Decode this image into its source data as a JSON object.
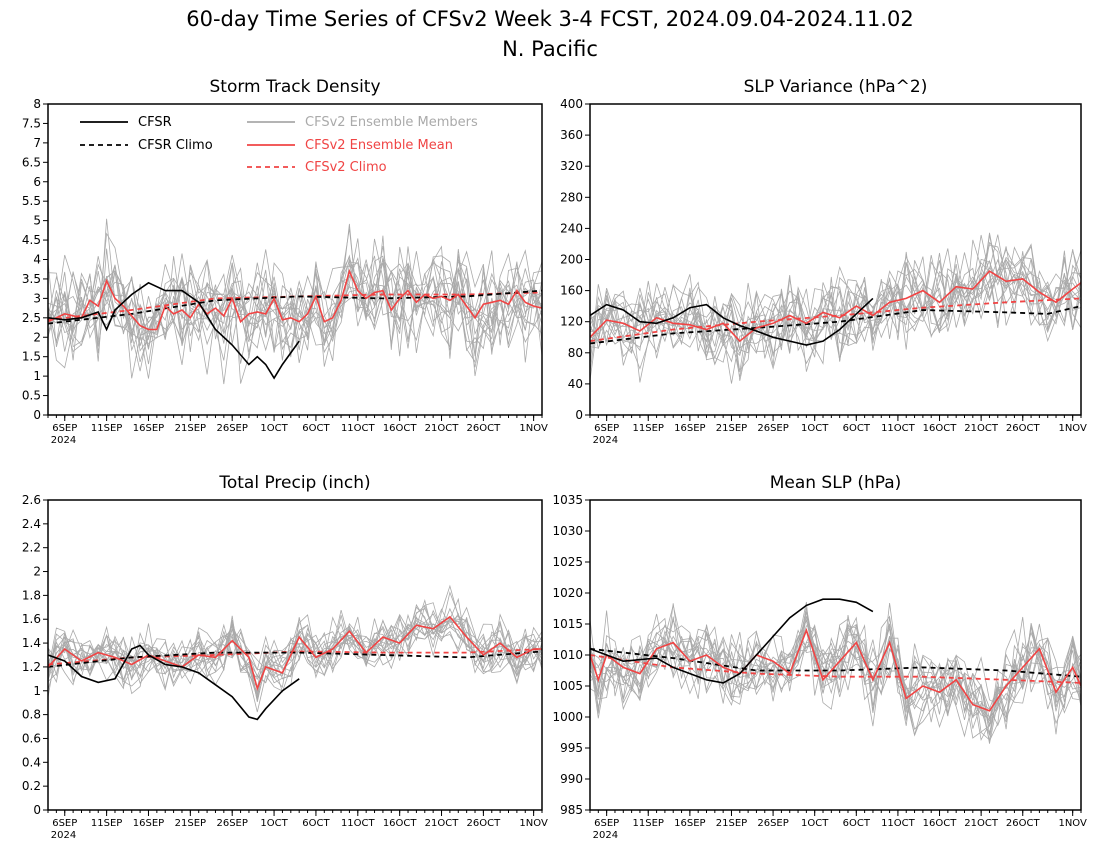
{
  "figure": {
    "title_line1": "60-day Time Series of CFSv2 Week 3-4 FCST, 2024.09.04-2024.11.02",
    "title_line2": "N. Pacific"
  },
  "legend": {
    "cfsr": "CFSR",
    "cfsr_climo": "CFSR Climo",
    "members": "CFSv2 Ensemble Members",
    "ens_mean": "CFSv2 Ensemble Mean",
    "cfsv2_climo": "CFSv2 Climo"
  },
  "colors": {
    "cfsr": "#000000",
    "members": "#aaaaaa",
    "ens_mean": "#f04444",
    "cfsv2_climo": "#f04444",
    "frame": "#000000"
  },
  "x_ticks": [
    {
      "day": 2,
      "label": "6SEP",
      "sub": "2024"
    },
    {
      "day": 7,
      "label": "11SEP"
    },
    {
      "day": 12,
      "label": "16SEP"
    },
    {
      "day": 17,
      "label": "21SEP"
    },
    {
      "day": 22,
      "label": "26SEP"
    },
    {
      "day": 27,
      "label": "1OCT"
    },
    {
      "day": 32,
      "label": "6OCT"
    },
    {
      "day": 37,
      "label": "11OCT"
    },
    {
      "day": 42,
      "label": "16OCT"
    },
    {
      "day": 47,
      "label": "21OCT"
    },
    {
      "day": 52,
      "label": "26OCT"
    },
    {
      "day": 58,
      "label": "1NOV"
    }
  ],
  "chart_data": [
    {
      "type": "line",
      "title": "Storm Track Density",
      "xlim": [
        0,
        59
      ],
      "ylim": [
        0,
        8
      ],
      "yticks": [
        0,
        0.5,
        1,
        1.5,
        2,
        2.5,
        3,
        3.5,
        4,
        4.5,
        5,
        5.5,
        6,
        6.5,
        7,
        7.5,
        8
      ],
      "legend": true,
      "series": [
        {
          "name": "CFSR",
          "x": [
            0,
            2,
            4,
            6,
            7,
            8,
            10,
            12,
            14,
            16,
            18,
            20,
            22,
            24,
            25,
            26,
            27,
            28,
            30
          ],
          "values": [
            2.5,
            2.45,
            2.5,
            2.65,
            2.2,
            2.7,
            3.1,
            3.4,
            3.2,
            3.2,
            2.9,
            2.2,
            1.8,
            1.3,
            1.5,
            1.3,
            0.95,
            1.3,
            1.9
          ]
        },
        {
          "name": "CFSR Climo",
          "x": [
            0,
            10,
            20,
            30,
            40,
            50,
            59
          ],
          "values": [
            2.35,
            2.6,
            2.95,
            3.05,
            3.0,
            3.05,
            3.2
          ]
        },
        {
          "name": "CFSv2 Ensemble Mean",
          "x": [
            0,
            2,
            4,
            5,
            6,
            7,
            8,
            9,
            10,
            11,
            12,
            13,
            14,
            15,
            16,
            17,
            18,
            19,
            20,
            21,
            22,
            23,
            24,
            25,
            26,
            27,
            28,
            29,
            30,
            31,
            32,
            33,
            34,
            35,
            36,
            37,
            38,
            39,
            40,
            41,
            42,
            43,
            44,
            45,
            46,
            47,
            48,
            49,
            50,
            51,
            52,
            53,
            54,
            55,
            56,
            57,
            58,
            59
          ],
          "values": [
            2.4,
            2.6,
            2.5,
            2.95,
            2.8,
            3.45,
            3.0,
            2.8,
            2.55,
            2.3,
            2.2,
            2.2,
            2.8,
            2.6,
            2.7,
            2.5,
            2.85,
            2.6,
            2.75,
            2.55,
            3.0,
            2.4,
            2.6,
            2.65,
            2.6,
            3.0,
            2.45,
            2.5,
            2.4,
            2.6,
            3.05,
            2.4,
            2.5,
            2.95,
            3.7,
            3.2,
            3.0,
            3.15,
            3.2,
            2.7,
            3.0,
            3.2,
            2.9,
            3.1,
            3.0,
            3.05,
            2.95,
            3.1,
            2.8,
            2.5,
            2.85,
            2.9,
            2.95,
            2.85,
            3.2,
            2.9,
            2.8,
            2.75
          ]
        },
        {
          "name": "CFSv2 Climo",
          "x": [
            0,
            10,
            20,
            30,
            40,
            50,
            59
          ],
          "values": [
            2.45,
            2.7,
            3.0,
            3.05,
            3.1,
            3.1,
            3.15
          ]
        }
      ],
      "members_band": {
        "center": "CFSv2 Ensemble Mean",
        "spread": 1.3,
        "count": 16
      }
    },
    {
      "type": "line",
      "title": "SLP Variance (hPa^2)",
      "xlim": [
        0,
        59
      ],
      "ylim": [
        0,
        400
      ],
      "yticks": [
        0,
        40,
        80,
        120,
        160,
        200,
        240,
        280,
        320,
        360,
        400
      ],
      "series": [
        {
          "name": "CFSR",
          "x": [
            0,
            2,
            4,
            6,
            8,
            10,
            12,
            14,
            16,
            18,
            20,
            22,
            24,
            26,
            28,
            30,
            32,
            34
          ],
          "values": [
            128,
            142,
            135,
            120,
            118,
            125,
            138,
            142,
            125,
            115,
            108,
            100,
            95,
            90,
            95,
            110,
            130,
            150
          ]
        },
        {
          "name": "CFSR Climo",
          "x": [
            0,
            10,
            20,
            30,
            40,
            50,
            55,
            59
          ],
          "values": [
            92,
            105,
            112,
            120,
            135,
            132,
            130,
            140
          ]
        },
        {
          "name": "CFSv2 Ensemble Mean",
          "x": [
            0,
            2,
            4,
            6,
            8,
            10,
            12,
            14,
            16,
            18,
            20,
            22,
            24,
            26,
            28,
            30,
            32,
            34,
            36,
            38,
            40,
            42,
            44,
            46,
            48,
            50,
            52,
            54,
            56,
            58,
            59
          ],
          "values": [
            100,
            122,
            118,
            108,
            125,
            118,
            116,
            110,
            118,
            95,
            112,
            118,
            128,
            118,
            132,
            125,
            140,
            128,
            145,
            150,
            160,
            145,
            165,
            162,
            185,
            172,
            175,
            158,
            145,
            162,
            170
          ]
        },
        {
          "name": "CFSv2 Climo",
          "x": [
            0,
            10,
            20,
            30,
            40,
            50,
            59
          ],
          "values": [
            95,
            110,
            120,
            128,
            138,
            145,
            150
          ]
        }
      ],
      "members_band": {
        "center": "CFSv2 Ensemble Mean",
        "spread": 55,
        "count": 16
      }
    },
    {
      "type": "line",
      "title": "Total Precip (inch)",
      "xlim": [
        0,
        59
      ],
      "ylim": [
        0,
        2.6
      ],
      "yticks": [
        0,
        0.2,
        0.4,
        0.6,
        0.8,
        1,
        1.2,
        1.4,
        1.6,
        1.8,
        2,
        2.2,
        2.4,
        2.6
      ],
      "series": [
        {
          "name": "CFSR",
          "x": [
            0,
            2,
            4,
            6,
            8,
            10,
            11,
            12,
            14,
            16,
            18,
            20,
            22,
            24,
            25,
            26,
            28,
            30
          ],
          "values": [
            1.3,
            1.25,
            1.12,
            1.07,
            1.1,
            1.35,
            1.38,
            1.3,
            1.22,
            1.2,
            1.15,
            1.05,
            0.95,
            0.78,
            0.76,
            0.85,
            1.0,
            1.1
          ]
        },
        {
          "name": "CFSR Climo",
          "x": [
            0,
            10,
            20,
            30,
            40,
            50,
            59
          ],
          "values": [
            1.2,
            1.28,
            1.32,
            1.32,
            1.3,
            1.28,
            1.33
          ]
        },
        {
          "name": "CFSv2 Ensemble Mean",
          "x": [
            0,
            2,
            4,
            6,
            8,
            10,
            12,
            14,
            16,
            18,
            20,
            22,
            24,
            25,
            26,
            28,
            30,
            32,
            34,
            36,
            38,
            40,
            42,
            44,
            46,
            48,
            50,
            52,
            54,
            56,
            58,
            59
          ],
          "values": [
            1.2,
            1.35,
            1.25,
            1.32,
            1.28,
            1.22,
            1.3,
            1.25,
            1.2,
            1.3,
            1.28,
            1.42,
            1.28,
            1.02,
            1.2,
            1.15,
            1.45,
            1.28,
            1.35,
            1.5,
            1.32,
            1.45,
            1.4,
            1.55,
            1.52,
            1.62,
            1.45,
            1.3,
            1.4,
            1.28,
            1.35,
            1.35
          ]
        },
        {
          "name": "CFSv2 Climo",
          "x": [
            0,
            10,
            20,
            30,
            40,
            50,
            59
          ],
          "values": [
            1.22,
            1.28,
            1.3,
            1.33,
            1.32,
            1.32,
            1.35
          ]
        }
      ],
      "members_band": {
        "center": "CFSv2 Ensemble Mean",
        "spread": 0.22,
        "count": 16
      }
    },
    {
      "type": "line",
      "title": "Mean SLP (hPa)",
      "xlim": [
        0,
        59
      ],
      "ylim": [
        985,
        1035
      ],
      "yticks": [
        985,
        990,
        995,
        1000,
        1005,
        1010,
        1015,
        1020,
        1025,
        1030,
        1035
      ],
      "series": [
        {
          "name": "CFSR",
          "x": [
            0,
            4,
            8,
            10,
            12,
            14,
            16,
            18,
            20,
            22,
            24,
            26,
            28,
            30,
            32,
            34
          ],
          "values": [
            1011,
            1009,
            1009.5,
            1008,
            1007,
            1006,
            1005.5,
            1007,
            1010,
            1013,
            1016,
            1018,
            1019,
            1019,
            1018.5,
            1017
          ]
        },
        {
          "name": "CFSR Climo",
          "x": [
            0,
            10,
            20,
            30,
            40,
            50,
            59
          ],
          "values": [
            1011,
            1009.5,
            1007.5,
            1007.5,
            1008,
            1007.5,
            1006.5
          ]
        },
        {
          "name": "CFSv2 Ensemble Mean",
          "x": [
            0,
            1,
            2,
            4,
            6,
            8,
            10,
            12,
            14,
            16,
            18,
            20,
            22,
            24,
            26,
            28,
            30,
            32,
            34,
            36,
            38,
            40,
            42,
            44,
            46,
            48,
            50,
            52,
            54,
            56,
            58,
            59
          ],
          "values": [
            1010,
            1006,
            1010,
            1008,
            1007,
            1011,
            1012,
            1009,
            1010,
            1008,
            1007,
            1010,
            1009,
            1007,
            1014,
            1006,
            1009,
            1012,
            1006,
            1012,
            1003,
            1005,
            1004,
            1006,
            1002,
            1001,
            1005,
            1008,
            1011,
            1004,
            1008,
            1005
          ]
        },
        {
          "name": "CFSv2 Climo",
          "x": [
            0,
            10,
            20,
            30,
            40,
            50,
            59
          ],
          "values": [
            1010,
            1008,
            1007,
            1006.5,
            1006.5,
            1006,
            1005.5
          ]
        }
      ],
      "members_band": {
        "center": "CFSv2 Ensemble Mean",
        "spread": 6.5,
        "count": 16
      }
    }
  ]
}
